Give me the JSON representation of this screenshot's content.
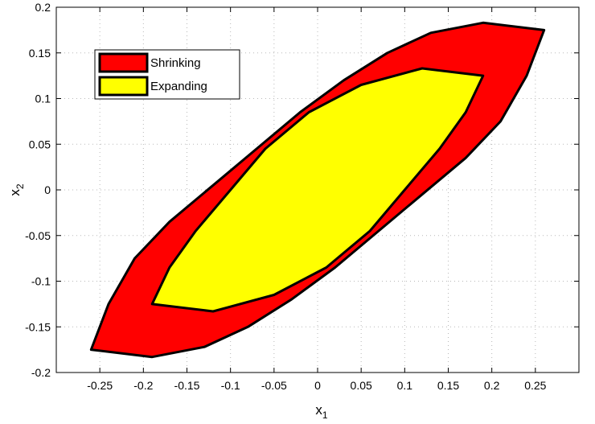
{
  "chart_data": {
    "type": "area",
    "xlabel": "x",
    "xlabel_sub": "1",
    "ylabel": "x",
    "ylabel_sub": "2",
    "xlim": [
      -0.3,
      0.3
    ],
    "ylim": [
      -0.2,
      0.2
    ],
    "grid": true,
    "legend_position": "top-left",
    "x_ticks": [
      -0.25,
      -0.2,
      -0.15,
      -0.1,
      -0.05,
      0,
      0.05,
      0.1,
      0.15,
      0.2,
      0.25
    ],
    "x_tick_labels": [
      "-0.25",
      "-0.2",
      "-0.15",
      "-0.1",
      "-0.05",
      "0",
      "0.05",
      "0.1",
      "0.15",
      "0.2",
      "0.25"
    ],
    "y_ticks": [
      -0.2,
      -0.15,
      -0.1,
      -0.05,
      0,
      0.05,
      0.1,
      0.15,
      0.2
    ],
    "y_tick_labels": [
      "-0.2",
      "-0.15",
      "-0.1",
      "-0.05",
      "0",
      "0.05",
      "0.1",
      "0.15",
      "0.2"
    ],
    "series": [
      {
        "name": "Shrinking",
        "color": "#ff0000",
        "points": [
          [
            0.26,
            0.175
          ],
          [
            0.24,
            0.125
          ],
          [
            0.21,
            0.075
          ],
          [
            0.17,
            0.035
          ],
          [
            0.12,
            -0.005
          ],
          [
            0.07,
            -0.045
          ],
          [
            0.02,
            -0.085
          ],
          [
            -0.03,
            -0.12
          ],
          [
            -0.08,
            -0.15
          ],
          [
            -0.13,
            -0.172
          ],
          [
            -0.19,
            -0.183
          ],
          [
            -0.26,
            -0.175
          ],
          [
            -0.24,
            -0.125
          ],
          [
            -0.21,
            -0.075
          ],
          [
            -0.17,
            -0.035
          ],
          [
            -0.12,
            0.005
          ],
          [
            -0.07,
            0.045
          ],
          [
            -0.02,
            0.085
          ],
          [
            0.03,
            0.12
          ],
          [
            0.08,
            0.15
          ],
          [
            0.13,
            0.172
          ],
          [
            0.19,
            0.183
          ]
        ]
      },
      {
        "name": "Expanding",
        "color": "#ffff00",
        "points": [
          [
            0.19,
            0.125
          ],
          [
            0.17,
            0.085
          ],
          [
            0.14,
            0.045
          ],
          [
            0.1,
            0.0
          ],
          [
            0.06,
            -0.045
          ],
          [
            0.01,
            -0.085
          ],
          [
            -0.05,
            -0.115
          ],
          [
            -0.12,
            -0.133
          ],
          [
            -0.19,
            -0.125
          ],
          [
            -0.17,
            -0.085
          ],
          [
            -0.14,
            -0.045
          ],
          [
            -0.1,
            0.0
          ],
          [
            -0.06,
            0.045
          ],
          [
            -0.01,
            0.085
          ],
          [
            0.05,
            0.115
          ],
          [
            0.12,
            0.133
          ]
        ]
      }
    ]
  }
}
